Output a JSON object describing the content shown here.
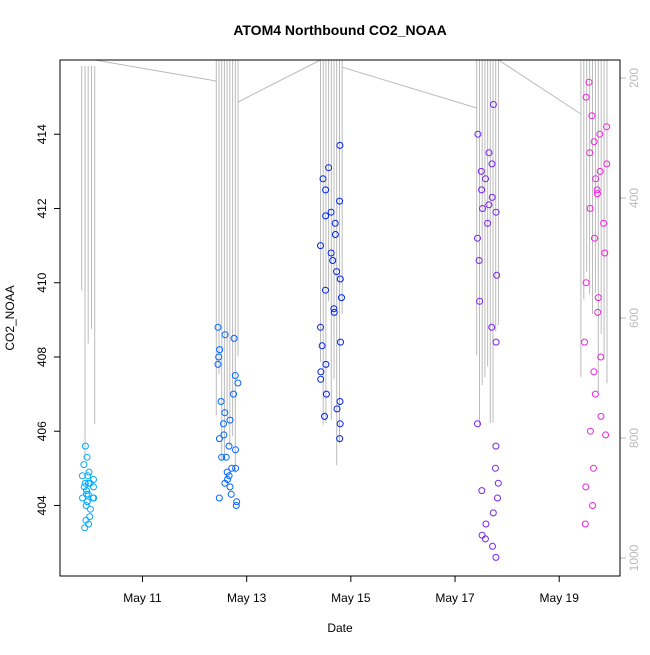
{
  "chart_data": {
    "type": "scatter",
    "title": "ATOM4 Northbound CO2_NOAA",
    "xlabel": "Date",
    "ylabel": "CO2_NOAA",
    "xlim": [
      "2018-05-09 10:00",
      "2018-05-20 04:00"
    ],
    "ylim": [
      402.1,
      416.0
    ],
    "y2lim": [
      1030,
      170
    ],
    "x_ticks": [
      {
        "value": "2018-05-11",
        "label": "May 11"
      },
      {
        "value": "2018-05-13",
        "label": "May 13"
      },
      {
        "value": "2018-05-15",
        "label": "May 15"
      },
      {
        "value": "2018-05-17",
        "label": "May 17"
      },
      {
        "value": "2018-05-19",
        "label": "May 19"
      }
    ],
    "y_ticks": [
      404,
      406,
      408,
      410,
      412,
      414
    ],
    "y2_ticks": [
      200,
      400,
      600,
      800,
      1000
    ],
    "grid": false,
    "series": [
      {
        "flight": "2018-05-10",
        "color": "#00AAFF",
        "x_start": "2018-05-09 20:00",
        "x_end": "2018-05-10 02:00",
        "co2_points": [
          404.2,
          404.6,
          404.9,
          404.3,
          404.1,
          404.5,
          404.7,
          404.8,
          404.4,
          404.0,
          403.9,
          404.2,
          404.6,
          405.1,
          405.3,
          405.6,
          404.3,
          404.1,
          403.6,
          403.5,
          403.7,
          403.4,
          404.5,
          404.8,
          404.2,
          404.6
        ]
      },
      {
        "flight": "2018-05-12",
        "color": "#0066FF",
        "x_start": "2018-05-12 10:00",
        "x_end": "2018-05-12 20:00",
        "co2_points": [
          404.5,
          404.7,
          404.9,
          404.3,
          404.1,
          404.6,
          405.0,
          405.3,
          405.6,
          405.9,
          406.2,
          406.5,
          407.0,
          407.5,
          408.0,
          408.5,
          408.8,
          408.6,
          408.2,
          407.8,
          407.3,
          406.8,
          406.3,
          405.8,
          405.3,
          404.8,
          404.2,
          404.0,
          405.5,
          405.0
        ]
      },
      {
        "flight": "2018-05-14",
        "color": "#0022EE",
        "x_start": "2018-05-14 10:00",
        "x_end": "2018-05-14 20:00",
        "co2_points": [
          405.8,
          406.2,
          406.6,
          407.0,
          407.4,
          407.8,
          408.3,
          408.8,
          409.3,
          409.8,
          410.3,
          410.8,
          411.3,
          411.8,
          412.2,
          412.5,
          413.1,
          413.7,
          412.8,
          411.9,
          411.0,
          410.1,
          409.2,
          408.4,
          407.6,
          406.8,
          406.4,
          409.6,
          410.6,
          411.6
        ]
      },
      {
        "flight": "2018-05-17",
        "color": "#7722EE",
        "x_start": "2018-05-17 10:00",
        "x_end": "2018-05-17 20:00",
        "co2_points": [
          412.0,
          412.5,
          413.0,
          413.5,
          414.0,
          414.8,
          413.2,
          412.3,
          411.6,
          411.2,
          410.6,
          410.2,
          409.5,
          408.8,
          408.4,
          406.2,
          405.6,
          405.0,
          404.6,
          404.2,
          403.8,
          403.5,
          403.2,
          402.9,
          402.6,
          403.1,
          404.4,
          412.8,
          411.9,
          412.1
        ]
      },
      {
        "flight": "2018-05-19",
        "color": "#EE22DD",
        "x_start": "2018-05-19 10:00",
        "x_end": "2018-05-19 22:00",
        "co2_points": [
          412.0,
          412.5,
          413.0,
          413.5,
          414.0,
          414.5,
          415.0,
          415.4,
          414.2,
          413.2,
          412.4,
          411.6,
          410.8,
          410.0,
          409.2,
          408.4,
          407.6,
          407.0,
          406.4,
          405.9,
          405.0,
          404.5,
          404.0,
          403.5,
          409.6,
          411.2,
          412.8,
          413.8,
          408.0,
          406.0
        ]
      }
    ],
    "pressure_trace": {
      "color": "#BBBBBB",
      "segments": [
        {
          "x_start": "2018-05-09 20:00",
          "x_end": "2018-05-10 02:00",
          "y_top": 180,
          "y_bottom": 860
        },
        {
          "x_start": "2018-05-12 10:00",
          "x_end": "2018-05-12 20:00",
          "y_top": 170,
          "y_bottom": 920
        },
        {
          "x_start": "2018-05-14 10:00",
          "x_end": "2018-05-14 20:00",
          "y_top": 170,
          "y_bottom": 870
        },
        {
          "x_start": "2018-05-17 10:00",
          "x_end": "2018-05-17 20:00",
          "y_top": 170,
          "y_bottom": 800
        },
        {
          "x_start": "2018-05-19 10:00",
          "x_end": "2018-05-19 22:00",
          "y_top": 170,
          "y_bottom": 740
        }
      ],
      "transits": [
        {
          "from": "2018-05-10 02:00",
          "from_p": 170,
          "to": "2018-05-12 10:00",
          "to_p": 205
        },
        {
          "from": "2018-05-12 20:00",
          "from_p": 240,
          "to": "2018-05-14 10:00",
          "to_p": 170
        },
        {
          "from": "2018-05-14 20:00",
          "from_p": 182,
          "to": "2018-05-17 10:00",
          "to_p": 250
        },
        {
          "from": "2018-05-17 20:00",
          "from_p": 170,
          "to": "2018-05-19 10:00",
          "to_p": 260
        }
      ]
    }
  }
}
